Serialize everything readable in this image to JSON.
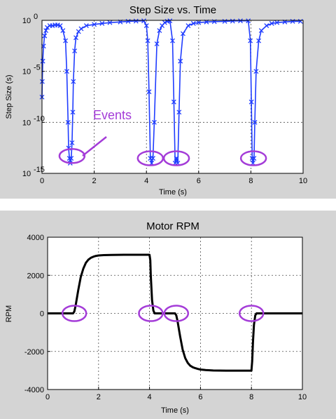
{
  "colors": {
    "figure_bg": "#d4d4d4",
    "axes_bg": "#ffffff",
    "step_series": "#1f3cff",
    "rpm_series": "#000000",
    "highlight": "#a43cd8",
    "grid": "#4d4d4d"
  },
  "annotation": {
    "text": "Events",
    "points": [
      [
        1.15,
        5e-14
      ],
      [
        4.15,
        3e-14
      ],
      [
        5.15,
        3e-14
      ],
      [
        8.1,
        3e-14
      ]
    ],
    "rpm_points": [
      [
        1.05,
        0
      ],
      [
        4.05,
        0
      ],
      [
        5.05,
        0
      ],
      [
        8.0,
        0
      ]
    ]
  },
  "chart_data": [
    {
      "type": "line",
      "title": "Step Size vs. Time",
      "xlabel": "Time (s)",
      "ylabel": "Step Size (s)",
      "xlim": [
        0,
        10
      ],
      "ylim": [
        1e-15,
        1
      ],
      "yscale": "log",
      "xticks": [
        0,
        2,
        4,
        6,
        8,
        10
      ],
      "ytick_exponents": [
        0,
        -5,
        -10,
        -15
      ],
      "ytick_base": "10",
      "grid": true,
      "marker": "x",
      "series": [
        {
          "x": [
            0,
            0.01,
            0.03,
            0.06,
            0.1,
            0.15,
            0.2,
            0.3,
            0.4,
            0.5,
            0.6,
            0.7,
            0.8,
            0.9,
            0.95,
            1.0,
            1.02,
            1.05,
            1.08,
            1.12,
            1.15,
            1.18,
            1.2,
            1.25,
            1.3,
            1.4,
            1.5,
            1.7,
            2.0,
            2.3,
            2.6,
            3.0,
            3.3,
            3.6,
            3.9,
            4.0,
            4.05,
            4.1,
            4.15,
            4.2,
            4.25,
            4.3,
            4.4,
            4.5,
            4.6,
            4.7,
            4.8,
            4.9,
            5.0,
            5.05,
            5.1,
            5.15,
            5.2,
            5.25,
            5.3,
            5.4,
            5.6,
            5.8,
            6.0,
            6.3,
            6.6,
            7.0,
            7.3,
            7.6,
            7.9,
            7.98,
            8.02,
            8.05,
            8.08,
            8.12,
            8.15,
            8.2,
            8.3,
            8.4,
            8.6,
            8.8,
            9.0,
            9.3,
            9.6,
            9.9
          ],
          "y": [
            3e-08,
            1e-06,
            0.0001,
            0.003,
            0.03,
            0.1,
            0.2,
            0.3,
            0.3,
            0.35,
            0.35,
            0.3,
            0.1,
            0.01,
            1e-05,
            1e-10,
            3e-13,
            3e-14,
            1e-14,
            3e-14,
            1e-12,
            1e-09,
            1e-06,
            0.001,
            0.02,
            0.08,
            0.15,
            0.3,
            0.4,
            0.5,
            0.6,
            0.7,
            0.8,
            0.85,
            0.9,
            0.3,
            0.01,
            1e-07,
            3e-14,
            1e-14,
            3e-14,
            1e-10,
            0.005,
            0.1,
            0.3,
            0.6,
            0.8,
            0.9,
            0.01,
            1e-08,
            1e-14,
            3e-14,
            1e-14,
            1e-09,
            0.0001,
            0.05,
            0.3,
            0.5,
            0.6,
            0.7,
            0.75,
            0.8,
            0.85,
            0.9,
            0.9,
            0.01,
            1e-08,
            3e-14,
            1e-14,
            3e-14,
            1e-10,
            1e-05,
            0.01,
            0.1,
            0.3,
            0.5,
            0.6,
            0.7,
            0.8,
            0.8
          ]
        }
      ]
    },
    {
      "type": "line",
      "title": "Motor RPM",
      "xlabel": "Time (s)",
      "ylabel": "RPM",
      "xlim": [
        0,
        10
      ],
      "ylim": [
        -4000,
        4000
      ],
      "xticks": [
        0,
        2,
        4,
        6,
        8,
        10
      ],
      "yticks": [
        -4000,
        -2000,
        0,
        2000,
        4000
      ],
      "grid": true,
      "series": [
        {
          "x": [
            0,
            1.0,
            1.05,
            1.1,
            1.2,
            1.3,
            1.4,
            1.5,
            1.6,
            1.7,
            1.8,
            1.9,
            2.0,
            2.2,
            2.5,
            3.0,
            3.5,
            4.0,
            4.03,
            4.05,
            4.1,
            4.15,
            4.2,
            5.0,
            5.05,
            5.1,
            5.2,
            5.3,
            5.4,
            5.5,
            5.6,
            5.7,
            5.8,
            5.9,
            6.0,
            6.2,
            6.5,
            7.0,
            7.5,
            8.0,
            8.03,
            8.06,
            8.1,
            8.15,
            8.2,
            10
          ],
          "y": [
            0,
            0,
            100,
            400,
            1200,
            1900,
            2350,
            2650,
            2820,
            2920,
            2980,
            3020,
            3040,
            3060,
            3070,
            3080,
            3080,
            3080,
            2800,
            2000,
            700,
            150,
            0,
            0,
            -100,
            -400,
            -1200,
            -1900,
            -2350,
            -2600,
            -2750,
            -2830,
            -2880,
            -2920,
            -2950,
            -2980,
            -3000,
            -3010,
            -3010,
            -3010,
            -2500,
            -1500,
            -600,
            -100,
            0,
            0
          ]
        }
      ]
    }
  ]
}
